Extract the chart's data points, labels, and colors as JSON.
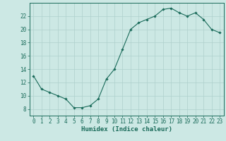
{
  "hours": [
    0,
    1,
    2,
    3,
    4,
    5,
    6,
    7,
    8,
    9,
    10,
    11,
    12,
    13,
    14,
    15,
    16,
    17,
    18,
    19,
    20,
    21,
    22,
    23
  ],
  "y_vals": [
    13,
    11,
    10.5,
    10,
    9.5,
    8.2,
    8.2,
    8.5,
    9.5,
    12.5,
    14,
    17,
    20,
    21,
    21.5,
    22,
    23,
    23.2,
    22.5,
    22,
    22.5,
    21.5,
    20,
    19.5
  ],
  "line_color": "#1a6b5a",
  "marker_color": "#1a6b5a",
  "bg_color": "#cce8e4",
  "grid_color": "#aed0cc",
  "axis_color": "#1a6b5a",
  "xlabel": "Humidex (Indice chaleur)",
  "ylim": [
    7,
    24
  ],
  "xlim": [
    -0.5,
    23.5
  ],
  "yticks": [
    8,
    10,
    12,
    14,
    16,
    18,
    20,
    22
  ],
  "xticks": [
    0,
    1,
    2,
    3,
    4,
    5,
    6,
    7,
    8,
    9,
    10,
    11,
    12,
    13,
    14,
    15,
    16,
    17,
    18,
    19,
    20,
    21,
    22,
    23
  ],
  "label_fontsize": 6.5,
  "tick_fontsize": 5.5
}
